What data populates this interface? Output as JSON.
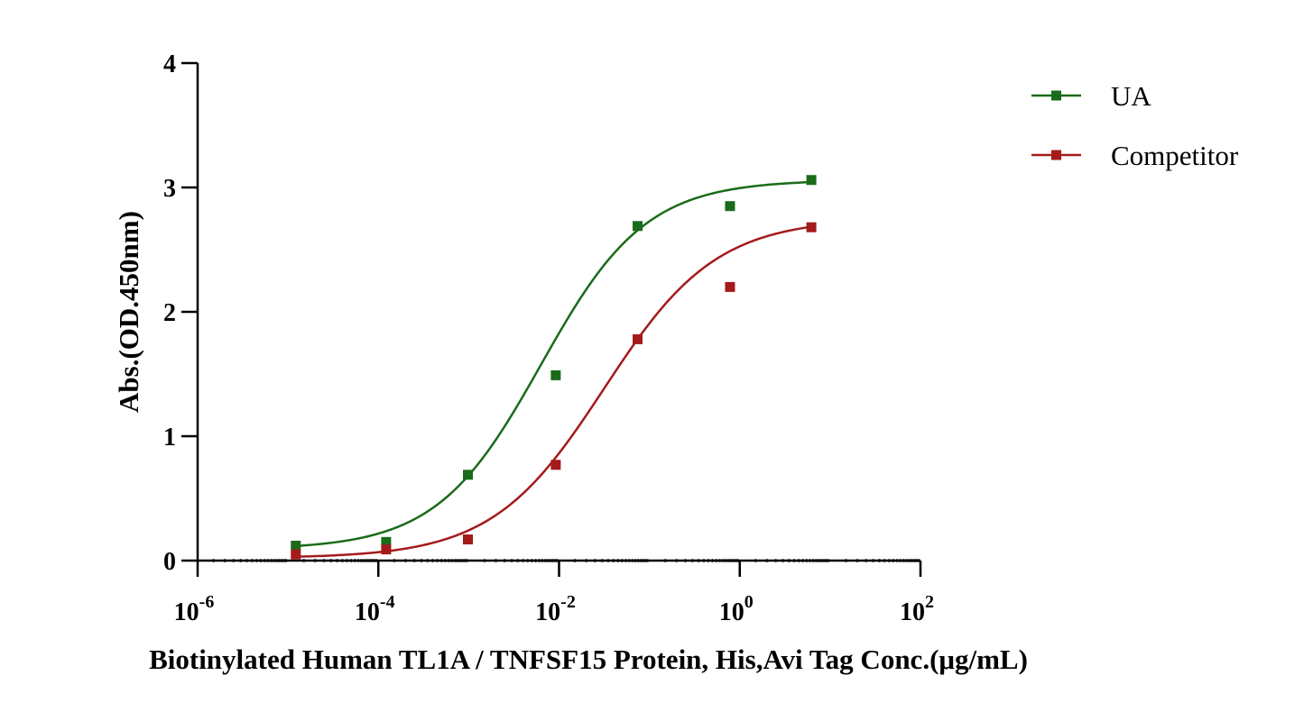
{
  "chart_data": {
    "type": "scatter",
    "title": "",
    "xlabel": "Biotinylated Human TL1A / TNFSF15 Protein, His,Avi Tag Conc.(μg/mL)",
    "ylabel": "Abs.(OD.450nm)",
    "x_scale": "log10",
    "xlim": [
      1e-06,
      100
    ],
    "ylim": [
      0,
      4
    ],
    "x_ticks": [
      {
        "value": 1e-06,
        "base": "10",
        "exp": "-6"
      },
      {
        "value": 0.0001,
        "base": "10",
        "exp": "-4"
      },
      {
        "value": 0.01,
        "base": "10",
        "exp": "-2"
      },
      {
        "value": 1,
        "base": "10",
        "exp": "0"
      },
      {
        "value": 100,
        "base": "10",
        "exp": "2"
      }
    ],
    "y_ticks": [
      "0",
      "1",
      "2",
      "3",
      "4"
    ],
    "grid": false,
    "legend_position": "top-right",
    "series": [
      {
        "name": "UA",
        "color": "#1a6b1a",
        "marker": "square",
        "points": [
          {
            "x": 1.22e-05,
            "y": 0.12
          },
          {
            "x": 0.000122,
            "y": 0.15
          },
          {
            "x": 0.00098,
            "y": 0.69
          },
          {
            "x": 0.0092,
            "y": 1.49
          },
          {
            "x": 0.074,
            "y": 2.69
          },
          {
            "x": 0.78,
            "y": 2.85
          },
          {
            "x": 6.2,
            "y": 3.06
          }
        ],
        "fit": {
          "model": "4PL",
          "bottom": 0.09,
          "top": 3.06,
          "log_ec50": -2.2,
          "hill": 0.75
        }
      },
      {
        "name": "Competitor",
        "color": "#a51a1a",
        "marker": "square",
        "points": [
          {
            "x": 1.22e-05,
            "y": 0.05
          },
          {
            "x": 0.000122,
            "y": 0.09
          },
          {
            "x": 0.00098,
            "y": 0.17
          },
          {
            "x": 0.0092,
            "y": 0.77
          },
          {
            "x": 0.074,
            "y": 1.78
          },
          {
            "x": 0.78,
            "y": 2.2
          },
          {
            "x": 6.2,
            "y": 2.68
          }
        ],
        "fit": {
          "model": "4PL",
          "bottom": 0.02,
          "top": 2.75,
          "log_ec50": -1.5,
          "hill": 0.7
        }
      }
    ]
  }
}
